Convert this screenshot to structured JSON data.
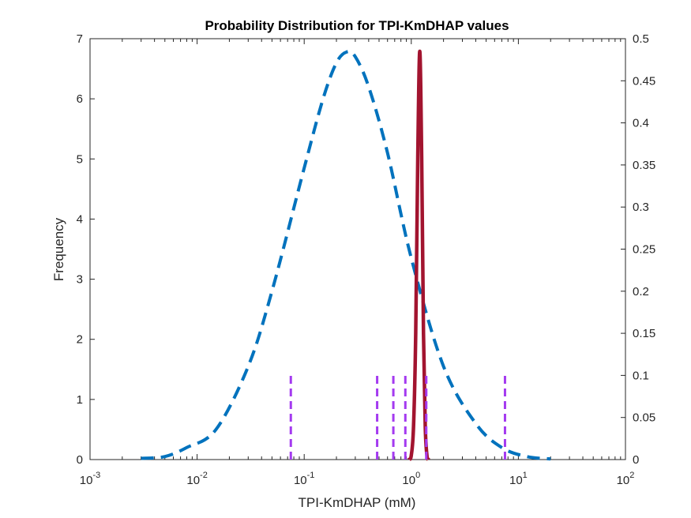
{
  "chart_data": {
    "type": "line",
    "title": "Probability Distribution for TPI-KmDHAP values",
    "xlabel": "TPI-KmDHAP (mM)",
    "ylabel": "Frequency",
    "x_scale": "log",
    "xlim": [
      0.001,
      100
    ],
    "ylim_left": [
      0,
      7
    ],
    "ylim_right": [
      0,
      0.5
    ],
    "grid": false,
    "legend": "none",
    "x_ticks": [
      {
        "value": 0.001,
        "base": "10",
        "exp": "-3"
      },
      {
        "value": 0.01,
        "base": "10",
        "exp": "-2"
      },
      {
        "value": 0.1,
        "base": "10",
        "exp": "-1"
      },
      {
        "value": 1,
        "base": "10",
        "exp": "0"
      },
      {
        "value": 10,
        "base": "10",
        "exp": "1"
      },
      {
        "value": 100,
        "base": "10",
        "exp": "2"
      }
    ],
    "y_ticks_left": [
      "0",
      "1",
      "2",
      "3",
      "4",
      "5",
      "6",
      "7"
    ],
    "y_ticks_right": [
      "0",
      "0.05",
      "0.1",
      "0.15",
      "0.2",
      "0.25",
      "0.3",
      "0.35",
      "0.4",
      "0.45",
      "0.5"
    ],
    "series": [
      {
        "style": "dashed",
        "color": "#0072BD",
        "axis": "left",
        "x": [
          0.003,
          0.005,
          0.008,
          0.015,
          0.03,
          0.05,
          0.1,
          0.15,
          0.2,
          0.25,
          0.3,
          0.4,
          0.6,
          1,
          2,
          4,
          7,
          12,
          20
        ],
        "y": [
          0.02,
          0.05,
          0.2,
          0.5,
          1.55,
          2.8,
          4.85,
          6.0,
          6.6,
          6.78,
          6.7,
          6.2,
          5.1,
          3.35,
          1.55,
          0.6,
          0.2,
          0.05,
          0.01
        ]
      },
      {
        "style": "solid",
        "color": "#A2142F",
        "axis": "right",
        "x": [
          0.95,
          1.0,
          1.05,
          1.1,
          1.15,
          1.2,
          1.25,
          1.3,
          1.35,
          1.4,
          1.45
        ],
        "y": [
          0.0,
          0.005,
          0.04,
          0.15,
          0.36,
          0.485,
          0.36,
          0.15,
          0.04,
          0.005,
          0.0
        ]
      },
      {
        "style": "dashed-vertical",
        "color": "#A43AF0",
        "axis": "right",
        "x": [
          0.075,
          0.48,
          0.68,
          0.88,
          1.38,
          7.5
        ],
        "height": 0.102
      }
    ]
  }
}
